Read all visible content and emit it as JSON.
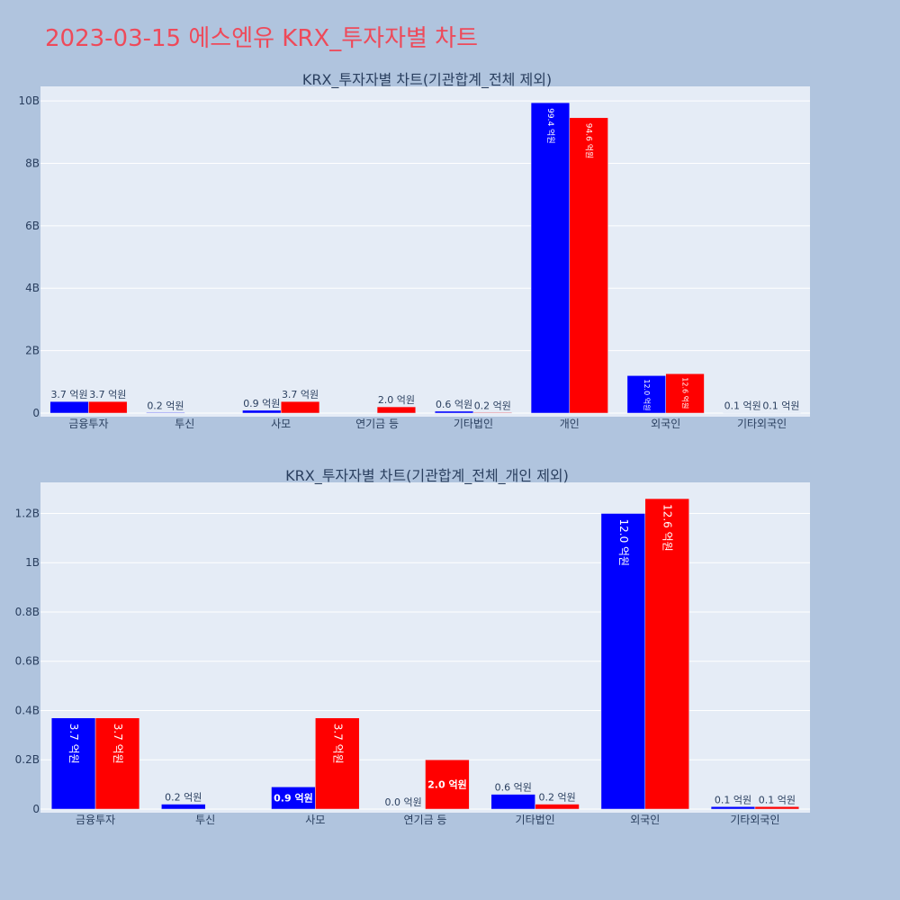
{
  "page": {
    "title": "2023-03-15 에스엔유 KRX_투자자별 차트"
  },
  "colors": {
    "sell": "#0000ff",
    "buy": "#ff0000",
    "plot_bg": "#e5ecf6",
    "page_bg": "#b0c4de",
    "title": "#ee4a5a"
  },
  "chart_data": [
    {
      "type": "bar",
      "title": "KRX_투자자별 차트(기관합계_전체 제외)",
      "categories": [
        "금융투자",
        "투신",
        "사모",
        "연기금 등",
        "기타법인",
        "개인",
        "외국인",
        "기타외국인"
      ],
      "series": [
        {
          "values": [
            370000000,
            20000000,
            90000000,
            0,
            60000000,
            9940000000,
            1200000000,
            10000000
          ],
          "labels": [
            "3.7 억원",
            "0.2 억원",
            "0.9 억원",
            "",
            "0.6 억원",
            "99.4 억원",
            "12.0 억원",
            "0.1 억원"
          ]
        },
        {
          "values": [
            370000000,
            0,
            370000000,
            200000000,
            20000000,
            9460000000,
            1260000000,
            10000000
          ],
          "labels": [
            "3.7 억원",
            "",
            "3.7 억원",
            "2.0 억원",
            "0.2 억원",
            "94.6 억원",
            "12.6 억원",
            "0.1 억원"
          ]
        }
      ],
      "yticks": [
        "0",
        "2B",
        "4B",
        "6B",
        "8B",
        "10B"
      ],
      "ytick_values": [
        0,
        2000000000,
        4000000000,
        6000000000,
        8000000000,
        10000000000
      ],
      "ylim": [
        0,
        10463000000
      ],
      "grid": true
    },
    {
      "type": "bar",
      "title": "KRX_투자자별 차트(기관합계_전체_개인 제외)",
      "categories": [
        "금융투자",
        "투신",
        "사모",
        "연기금 등",
        "기타법인",
        "외국인",
        "기타외국인"
      ],
      "series": [
        {
          "values": [
            370000000,
            20000000,
            90000000,
            0,
            60000000,
            1200000000,
            10000000
          ],
          "labels": [
            "3.7 억원",
            "0.2 억원",
            "0.9 억원",
            "0.0 억원",
            "0.6 억원",
            "12.0 억원",
            "0.1 억원"
          ]
        },
        {
          "values": [
            370000000,
            0,
            370000000,
            200000000,
            20000000,
            1260000000,
            10000000
          ],
          "labels": [
            "3.7 억원",
            "",
            "3.7 억원",
            "2.0 억원",
            "0.2 억원",
            "12.6 억원",
            "0.1 억원"
          ]
        }
      ],
      "yticks": [
        "0",
        "0.2B",
        "0.4B",
        "0.6B",
        "0.8B",
        "1B",
        "1.2B"
      ],
      "ytick_values": [
        0,
        200000000,
        400000000,
        600000000,
        800000000,
        1000000000,
        1200000000
      ],
      "ylim": [
        0,
        1326000000
      ],
      "grid": true
    }
  ]
}
